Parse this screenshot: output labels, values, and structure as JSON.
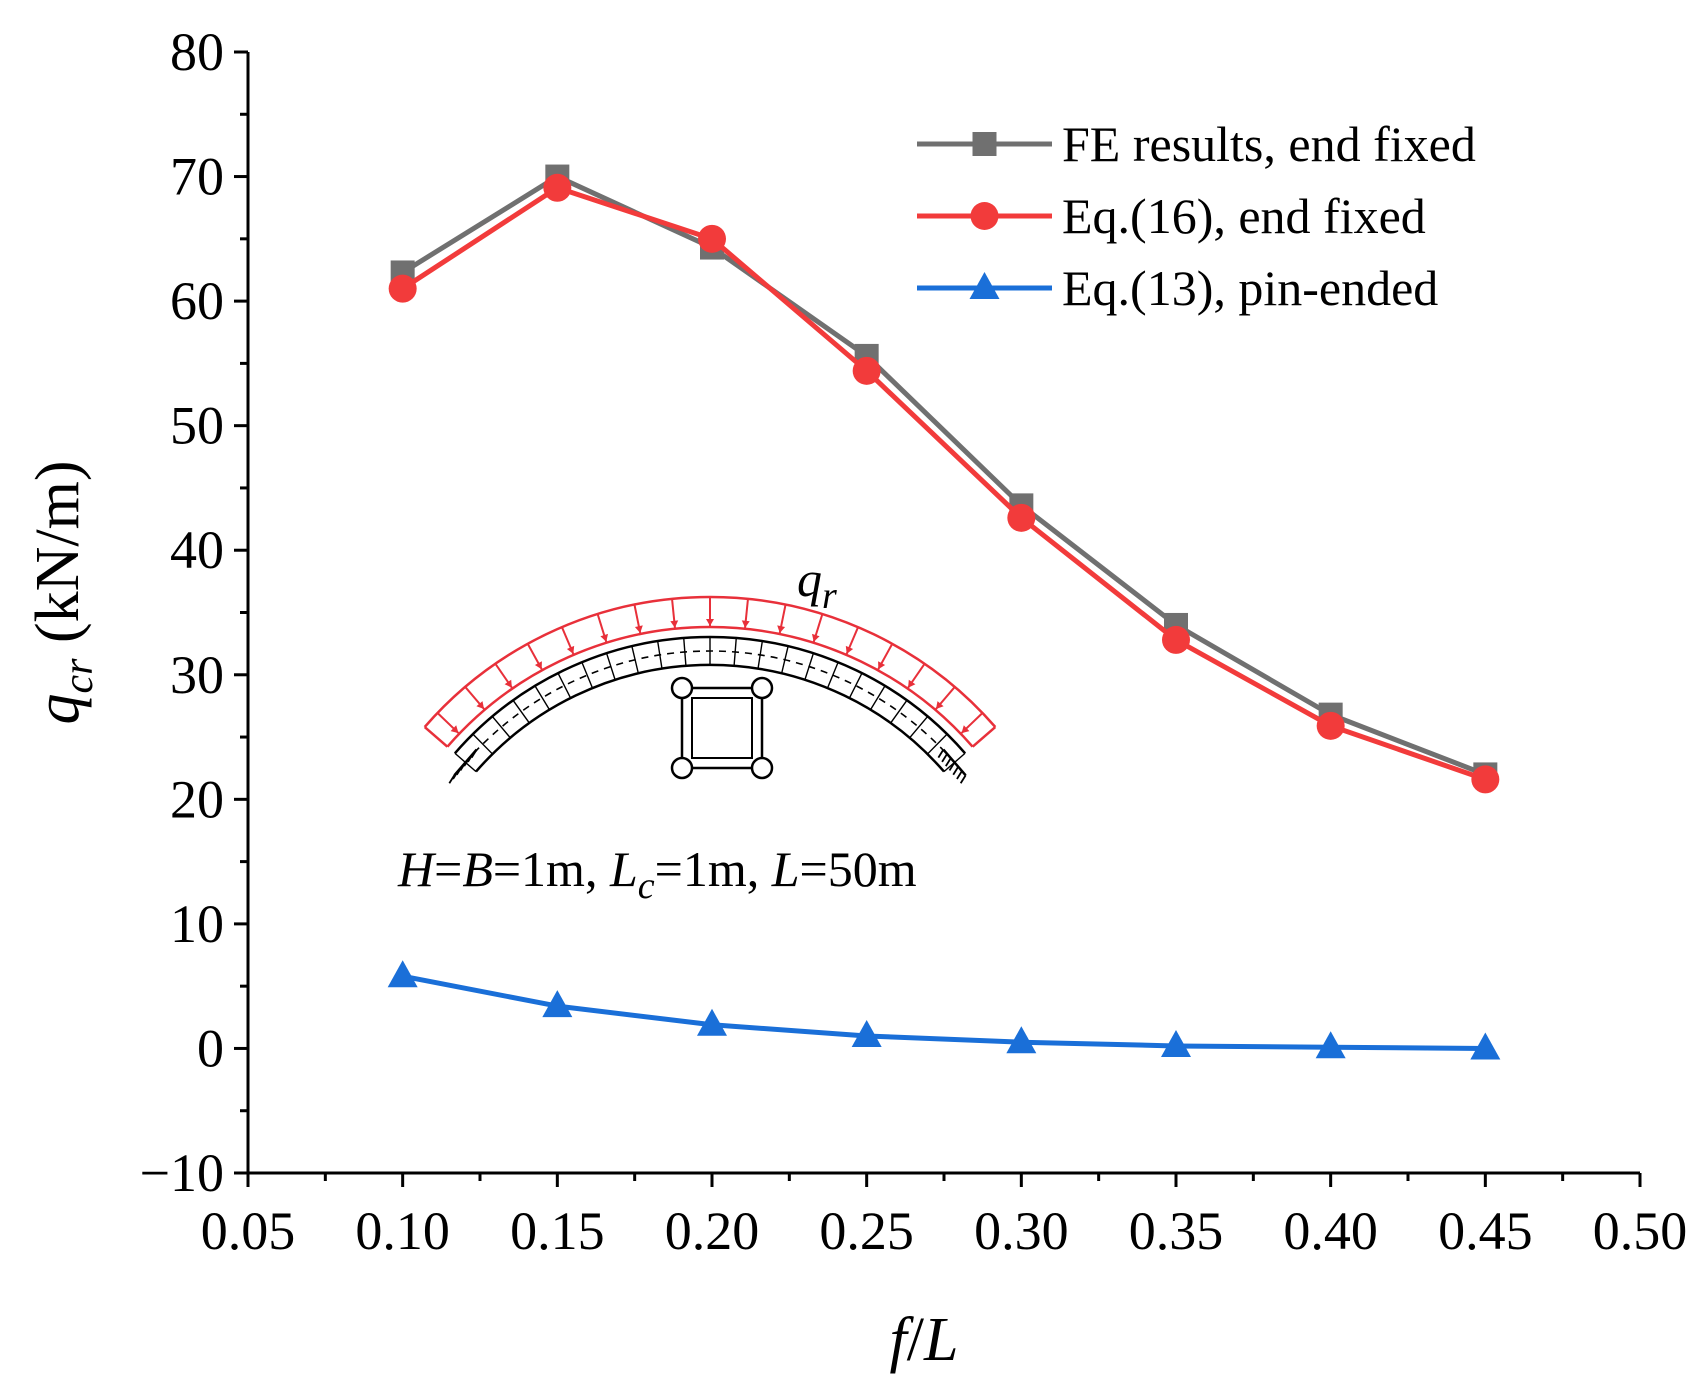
{
  "chart_data": {
    "type": "line",
    "xlabel": {
      "main": "f",
      "sep": "/",
      "tail": "L"
    },
    "ylabel": {
      "main": "q",
      "sub": "cr",
      "tail": " (kN/m)"
    },
    "xlim": [
      0.05,
      0.5
    ],
    "ylim": [
      -10,
      80
    ],
    "x_ticks": [
      0.05,
      0.1,
      0.15,
      0.2,
      0.25,
      0.3,
      0.35,
      0.4,
      0.45,
      0.5
    ],
    "x_tick_labels": [
      "0.05",
      "0.10",
      "0.15",
      "0.20",
      "0.25",
      "0.30",
      "0.35",
      "0.40",
      "0.45",
      "0.50"
    ],
    "y_ticks": [
      -10,
      0,
      10,
      20,
      30,
      40,
      50,
      60,
      70,
      80
    ],
    "y_tick_labels": [
      "−10",
      "0",
      "10",
      "20",
      "30",
      "40",
      "50",
      "60",
      "70",
      "80"
    ],
    "legend_position": "top-right",
    "x": [
      0.1,
      0.15,
      0.2,
      0.25,
      0.3,
      0.35,
      0.4,
      0.45
    ],
    "series": [
      {
        "name": "FE results, end fixed",
        "color": "#707070",
        "marker": "square",
        "values": [
          62.3,
          70.0,
          64.3,
          55.6,
          43.6,
          34.0,
          26.8,
          22.0
        ]
      },
      {
        "name": "Eq.(16), end fixed",
        "color": "#f23b3b",
        "marker": "circle",
        "values": [
          61.0,
          69.1,
          65.0,
          54.4,
          42.6,
          32.8,
          25.9,
          21.6
        ]
      },
      {
        "name": "Eq.(13), pin-ended",
        "color": "#1a6fd8",
        "marker": "triangle",
        "values": [
          5.8,
          3.4,
          1.9,
          1.0,
          0.5,
          0.2,
          0.1,
          0.0
        ]
      }
    ],
    "inset": {
      "load_label": {
        "main": "q",
        "sub": "r"
      },
      "caption": [
        {
          "t": "H",
          "i": true
        },
        {
          "t": "=",
          "i": false
        },
        {
          "t": "B",
          "i": true
        },
        {
          "t": "=1m, ",
          "i": false
        },
        {
          "t": "L",
          "i": true
        },
        {
          "t": "c",
          "i": true,
          "sub": true
        },
        {
          "t": "=1m, ",
          "i": false
        },
        {
          "t": "L",
          "i": true
        },
        {
          "t": "=50m",
          "i": false
        }
      ],
      "load_color": "#e8303a"
    }
  }
}
